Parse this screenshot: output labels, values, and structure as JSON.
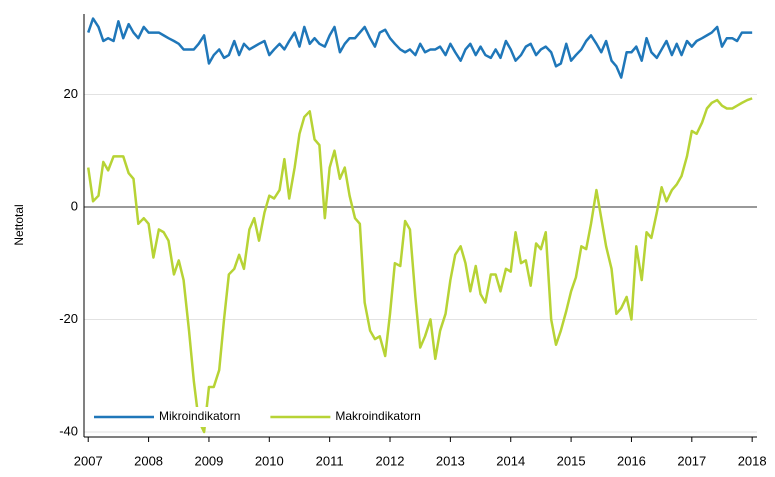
{
  "chart_data": {
    "type": "line",
    "y_label": "Nettotal",
    "x": [
      2007,
      2007.08,
      2007.17,
      2007.25,
      2007.33,
      2007.42,
      2007.5,
      2007.58,
      2007.67,
      2007.75,
      2007.83,
      2007.92,
      2008,
      2008.08,
      2008.17,
      2008.25,
      2008.33,
      2008.42,
      2008.5,
      2008.58,
      2008.67,
      2008.75,
      2008.83,
      2008.92,
      2009,
      2009.08,
      2009.17,
      2009.25,
      2009.33,
      2009.42,
      2009.5,
      2009.58,
      2009.67,
      2009.75,
      2009.83,
      2009.92,
      2010,
      2010.08,
      2010.17,
      2010.25,
      2010.33,
      2010.42,
      2010.5,
      2010.58,
      2010.67,
      2010.75,
      2010.83,
      2010.92,
      2011,
      2011.08,
      2011.17,
      2011.25,
      2011.33,
      2011.42,
      2011.5,
      2011.58,
      2011.67,
      2011.75,
      2011.83,
      2011.92,
      2012,
      2012.08,
      2012.17,
      2012.25,
      2012.33,
      2012.42,
      2012.5,
      2012.58,
      2012.67,
      2012.75,
      2012.83,
      2012.92,
      2013,
      2013.08,
      2013.17,
      2013.25,
      2013.33,
      2013.42,
      2013.5,
      2013.58,
      2013.67,
      2013.75,
      2013.83,
      2013.92,
      2014,
      2014.08,
      2014.17,
      2014.25,
      2014.33,
      2014.42,
      2014.5,
      2014.58,
      2014.67,
      2014.75,
      2014.83,
      2014.92,
      2015,
      2015.08,
      2015.17,
      2015.25,
      2015.33,
      2015.42,
      2015.5,
      2015.58,
      2015.67,
      2015.75,
      2015.83,
      2015.92,
      2016,
      2016.08,
      2016.17,
      2016.25,
      2016.33,
      2016.42,
      2016.5,
      2016.58,
      2016.67,
      2016.75,
      2016.83,
      2016.92,
      2017,
      2017.08,
      2017.17,
      2017.25,
      2017.33,
      2017.42,
      2017.5,
      2017.58,
      2017.67,
      2017.75,
      2017.83,
      2017.92,
      2018
    ],
    "series": [
      {
        "name": "Mikroindikatorn",
        "color": "#1f77b9",
        "values": [
          31,
          33.5,
          32,
          29.5,
          30,
          29.5,
          33,
          30,
          32.5,
          31,
          30,
          32,
          31,
          31,
          31,
          30.5,
          30,
          29.5,
          29,
          28,
          28,
          28,
          29,
          30.5,
          25.5,
          27,
          28,
          26.5,
          27,
          29.5,
          27,
          29,
          28,
          28.5,
          29,
          29.5,
          27,
          28,
          29,
          28,
          29.5,
          31,
          28.5,
          32,
          29,
          30,
          29,
          28.5,
          30.5,
          32,
          27.5,
          29,
          30,
          30,
          31,
          32,
          30,
          28.5,
          31,
          31.5,
          30,
          29,
          28,
          27.5,
          28,
          27,
          29,
          27.5,
          28,
          28,
          28.5,
          27,
          29,
          27.5,
          26,
          28,
          29,
          27,
          28.5,
          27,
          26.5,
          28,
          26.5,
          29.5,
          28,
          26,
          27,
          28.5,
          29,
          27,
          28,
          28.5,
          27.5,
          25,
          25.5,
          29,
          26,
          27,
          28,
          29.5,
          30.5,
          29,
          27.5,
          29.5,
          26,
          25,
          23,
          27.5,
          27.5,
          28.5,
          26,
          30,
          27.5,
          26.5,
          28,
          29.5,
          27,
          29,
          27,
          29.5,
          28.5,
          29.5,
          30,
          30.5,
          31,
          32,
          28.5,
          30,
          30,
          29.5,
          31,
          31,
          31
        ]
      },
      {
        "name": "Makroindikatorn",
        "color": "#b7d335",
        "values": [
          7,
          1,
          2,
          8,
          6.5,
          9,
          9,
          9,
          6,
          5,
          -3,
          -2,
          -3,
          -9,
          -4,
          -4.5,
          -6,
          -12,
          -9.5,
          -13,
          -22,
          -31,
          -38,
          -40,
          -32,
          -32,
          -29,
          -20,
          -12,
          -11,
          -8.5,
          -11,
          -4,
          -2,
          -6,
          -1,
          2,
          1.5,
          3,
          8.5,
          1.5,
          7,
          13,
          16,
          17,
          12,
          11,
          -2,
          7,
          10,
          5,
          7,
          2,
          -2,
          -3,
          -17,
          -22,
          -23.5,
          -23,
          -26.5,
          -19,
          -10,
          -10.5,
          -2.5,
          -4,
          -16,
          -25,
          -23,
          -20,
          -27,
          -22,
          -19,
          -13,
          -8.5,
          -7,
          -10,
          -15,
          -10.5,
          -15.5,
          -17,
          -12,
          -12,
          -15,
          -11,
          -11.5,
          -4.5,
          -10,
          -9.5,
          -14,
          -6.5,
          -7.5,
          -4.5,
          -20,
          -24.5,
          -22,
          -18.5,
          -15,
          -12.5,
          -7,
          -7.5,
          -3,
          3,
          -2,
          -7,
          -11,
          -19,
          -18,
          -16,
          -20,
          -7,
          -13,
          -4.5,
          -5.5,
          -1,
          3.5,
          1,
          3,
          4,
          5.5,
          9,
          13.5,
          13,
          15,
          17.5,
          18.5,
          19,
          18,
          17.5,
          17.5,
          18,
          18.5,
          19,
          19.3
        ]
      }
    ],
    "xlim": [
      2006.93,
      2018.08
    ],
    "xticks": [
      2007,
      2008,
      2009,
      2010,
      2011,
      2012,
      2013,
      2014,
      2015,
      2016,
      2017,
      2018
    ],
    "ylim": [
      -40.9,
      34.3
    ],
    "yticks": [
      -40,
      -20,
      0,
      20
    ],
    "grid": true,
    "legend": "bottom-left"
  }
}
